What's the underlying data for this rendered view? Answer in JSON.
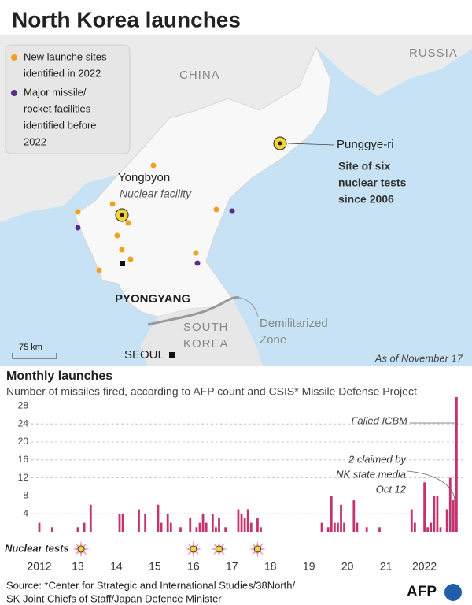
{
  "header": {
    "title": "North Korea launches"
  },
  "legend": {
    "new_sites": "New launche sites identified in 2022",
    "new_sites_lines": [
      "New launche sites",
      "identified in 2022"
    ],
    "major_lines": [
      "Major missile/",
      "rocket facilities",
      "identified before",
      "2022"
    ]
  },
  "map": {
    "china": "CHINA",
    "russia": "RUSSIA",
    "punggye": "Punggye-ri",
    "punggye_note": [
      "Site of six",
      "nuclear tests",
      "since 2006"
    ],
    "yongbyon": "Yongbyon",
    "yongbyon_note": "Nuclear facility",
    "pyongyang": "PYONGYANG",
    "south_korea": [
      "SOUTH",
      "KOREA"
    ],
    "dmz": [
      "Demilitarized",
      "Zone"
    ],
    "seoul": "SEOUL",
    "scale": "75 km",
    "as_of": "As of November 17"
  },
  "chart_data": {
    "type": "bar",
    "title": "Monthly launches",
    "subtitle": "Number of missiles fired, according to AFP count and CSIS* Missile Defense Project",
    "color": "#c3346f",
    "ylim": [
      0,
      30
    ],
    "yticks": [
      4,
      8,
      12,
      16,
      20,
      24,
      28
    ],
    "grid": true,
    "categories": [
      "2012",
      null,
      null,
      null,
      null,
      null,
      null,
      null,
      null,
      null,
      null,
      null,
      "13",
      null,
      null,
      null,
      null,
      null,
      null,
      null,
      null,
      null,
      null,
      null,
      "14",
      null,
      null,
      null,
      null,
      null,
      null,
      null,
      null,
      null,
      null,
      null,
      "15",
      null,
      null,
      null,
      null,
      null,
      null,
      null,
      null,
      null,
      null,
      null,
      "16",
      null,
      null,
      null,
      null,
      null,
      null,
      null,
      null,
      null,
      null,
      null,
      "17",
      null,
      null,
      null,
      null,
      null,
      null,
      null,
      null,
      null,
      null,
      null,
      "18",
      null,
      null,
      null,
      null,
      null,
      null,
      null,
      null,
      null,
      null,
      null,
      "19",
      null,
      null,
      null,
      null,
      null,
      null,
      null,
      null,
      null,
      null,
      null,
      "20",
      null,
      null,
      null,
      null,
      null,
      null,
      null,
      null,
      null,
      null,
      null,
      "21",
      null,
      null,
      null,
      null,
      null,
      null,
      null,
      null,
      null,
      null,
      null,
      "2022",
      null,
      null,
      null,
      null,
      null,
      null,
      null,
      null,
      null,
      null
    ],
    "values": [
      2,
      0,
      0,
      0,
      1,
      0,
      0,
      0,
      0,
      0,
      0,
      0,
      1,
      0,
      2,
      0,
      6,
      0,
      0,
      0,
      0,
      0,
      0,
      0,
      0,
      4,
      4,
      0,
      0,
      0,
      0,
      5,
      0,
      4,
      0,
      0,
      0,
      6,
      2,
      0,
      4,
      2,
      0,
      0,
      1,
      0,
      0,
      3,
      0,
      1,
      2,
      4,
      2,
      0,
      4,
      1,
      3,
      0,
      1,
      0,
      0,
      0,
      5,
      4,
      3,
      5,
      2,
      0,
      3,
      1,
      0,
      0,
      0,
      0,
      0,
      0,
      0,
      0,
      0,
      0,
      0,
      0,
      0,
      0,
      0,
      0,
      0,
      0,
      2,
      0,
      1,
      8,
      2,
      2,
      6,
      2,
      0,
      0,
      7,
      2,
      0,
      0,
      1,
      0,
      0,
      0,
      1,
      0,
      0,
      0,
      0,
      0,
      0,
      0,
      0,
      0,
      5,
      2,
      0,
      0,
      11,
      1,
      2,
      8,
      8,
      1,
      0,
      5,
      12,
      7,
      30
    ],
    "nuclear_tests": {
      "label": "Nuclear tests",
      "months": [
        13,
        48,
        56,
        68
      ]
    },
    "annotations": {
      "failed_icbm": "Failed ICBM",
      "claimed": [
        "2 claimed by",
        "NK state media",
        "Oct 12"
      ]
    }
  },
  "footer": {
    "source": [
      "Source: *Center for Strategic and International Studies/38North/",
      "SK Joint Chiefs of Staff/Japan Defence Minister"
    ],
    "logo": "AFP"
  }
}
